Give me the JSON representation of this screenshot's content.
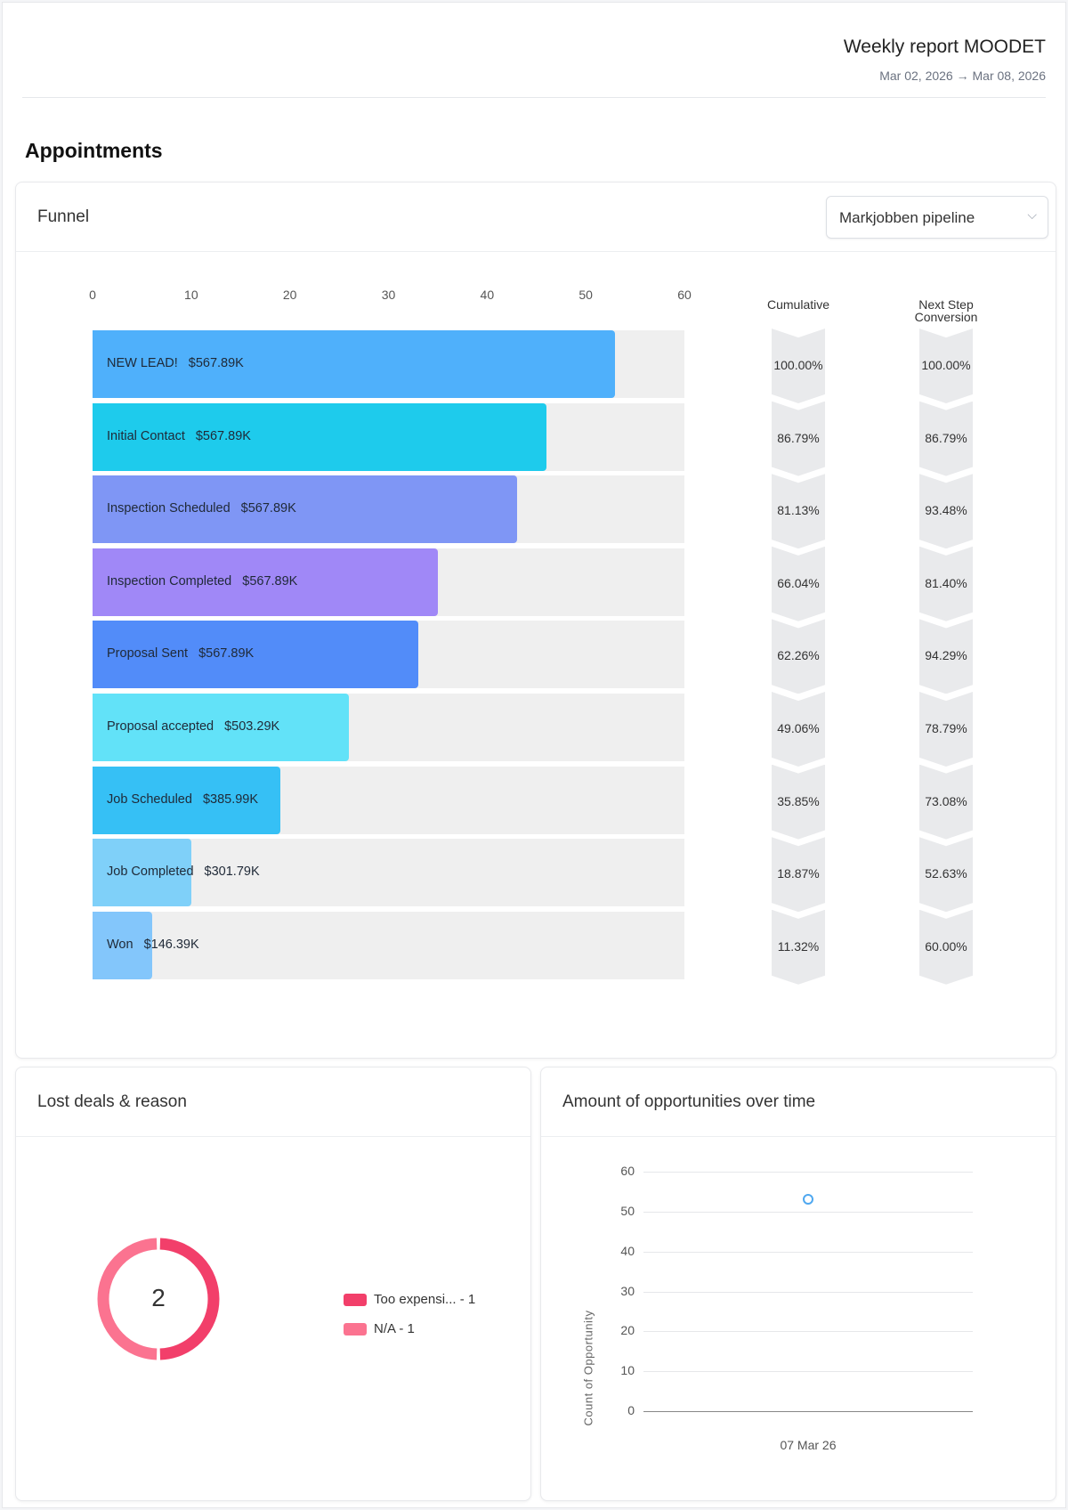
{
  "header": {
    "title": "Weekly report MOODET",
    "date_range": "Mar 02, 2026 → Mar 08, 2026"
  },
  "section_title": "Appointments",
  "funnel": {
    "title": "Funnel",
    "pipeline_select": {
      "value": "Markjobben pipeline",
      "icon": "chevron-down-icon"
    },
    "cumulative_label": "Cumulative",
    "next_step_label": "Next Step Conversion"
  },
  "chart_data": [
    {
      "type": "bar",
      "orientation": "horizontal",
      "xlim": [
        0,
        60
      ],
      "xticks": [
        "0",
        "10",
        "20",
        "30",
        "40",
        "50",
        "60"
      ],
      "stages": [
        {
          "label": "NEW LEAD!",
          "amount": "$567.89K",
          "value": 53,
          "color": "#4fb0fb",
          "cumulative": "100.00%",
          "next_step": "100.00%"
        },
        {
          "label": "Initial Contact",
          "amount": "$567.89K",
          "value": 46,
          "color": "#1ecbec",
          "cumulative": "86.79%",
          "next_step": "86.79%"
        },
        {
          "label": "Inspection Scheduled",
          "amount": "$567.89K",
          "value": 43,
          "color": "#7f96f5",
          "cumulative": "81.13%",
          "next_step": "93.48%"
        },
        {
          "label": "Inspection Completed",
          "amount": "$567.89K",
          "value": 35,
          "color": "#a088f7",
          "cumulative": "66.04%",
          "next_step": "81.40%"
        },
        {
          "label": "Proposal Sent",
          "amount": "$567.89K",
          "value": 33,
          "color": "#528cf9",
          "cumulative": "62.26%",
          "next_step": "94.29%"
        },
        {
          "label": "Proposal accepted",
          "amount": "$503.29K",
          "value": 26,
          "color": "#62e2f8",
          "cumulative": "49.06%",
          "next_step": "78.79%"
        },
        {
          "label": "Job Scheduled",
          "amount": "$385.99K",
          "value": 19,
          "color": "#36c0f5",
          "cumulative": "35.85%",
          "next_step": "73.08%"
        },
        {
          "label": "Job Completed",
          "amount": "$301.79K",
          "value": 10,
          "color": "#7fd0f9",
          "cumulative": "18.87%",
          "next_step": "52.63%"
        },
        {
          "label": "Won",
          "amount": "$146.39K",
          "value": 6,
          "color": "#83c6fb",
          "cumulative": "11.32%",
          "next_step": "60.00%"
        }
      ]
    },
    {
      "type": "pie",
      "title": "Lost deals & reason",
      "donut": true,
      "center_label": "2",
      "slices": [
        {
          "name": "Too expensi... - 1",
          "value": 1,
          "color": "#f23f6a"
        },
        {
          "name": "N/A - 1",
          "value": 1,
          "color": "#fb7390"
        }
      ]
    },
    {
      "type": "scatter",
      "title": "Amount of opportunities over time",
      "ylabel": "Count of Opportunity",
      "ylim": [
        0,
        60
      ],
      "yticks": [
        "0",
        "10",
        "20",
        "30",
        "40",
        "50",
        "60"
      ],
      "categories": [
        "07 Mar 26"
      ],
      "values": [
        53
      ],
      "color": "#4fa8f0",
      "grid": true
    }
  ]
}
